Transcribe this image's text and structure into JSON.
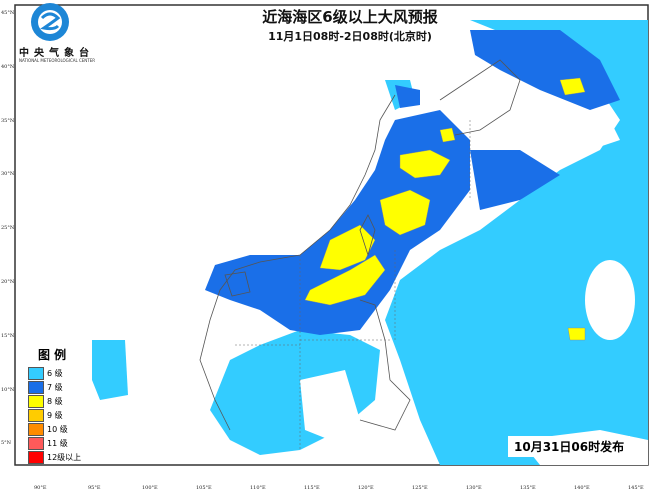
{
  "header": {
    "title": "近海海区6级以上大风预报",
    "subtitle": "11月1日08时-2日08时(北京时)"
  },
  "organization": {
    "name_cn": "中央气象台",
    "name_en": "NATIONAL METEOROLOGICAL CENTER"
  },
  "legend": {
    "title": "图 例",
    "items": [
      {
        "label": "6 级",
        "color": "#33ccff"
      },
      {
        "label": "7 级",
        "color": "#1a6fe8"
      },
      {
        "label": "8 级",
        "color": "#ffff00"
      },
      {
        "label": "9 级",
        "color": "#ffcc00"
      },
      {
        "label": "10 级",
        "color": "#ff8c00"
      },
      {
        "label": "11 级",
        "color": "#ff5a5a"
      },
      {
        "label": "12级以上",
        "color": "#ff0000"
      }
    ]
  },
  "issue_time": "10月31日06时发布",
  "axes": {
    "lat_labels": [
      "45°N",
      "40°N",
      "35°N",
      "30°N",
      "25°N",
      "20°N",
      "15°N",
      "10°N",
      "5°N"
    ],
    "lon_labels": [
      "90°E",
      "95°E",
      "100°E",
      "105°E",
      "110°E",
      "115°E",
      "120°E",
      "125°E",
      "130°E",
      "135°E",
      "140°E",
      "145°E"
    ]
  }
}
